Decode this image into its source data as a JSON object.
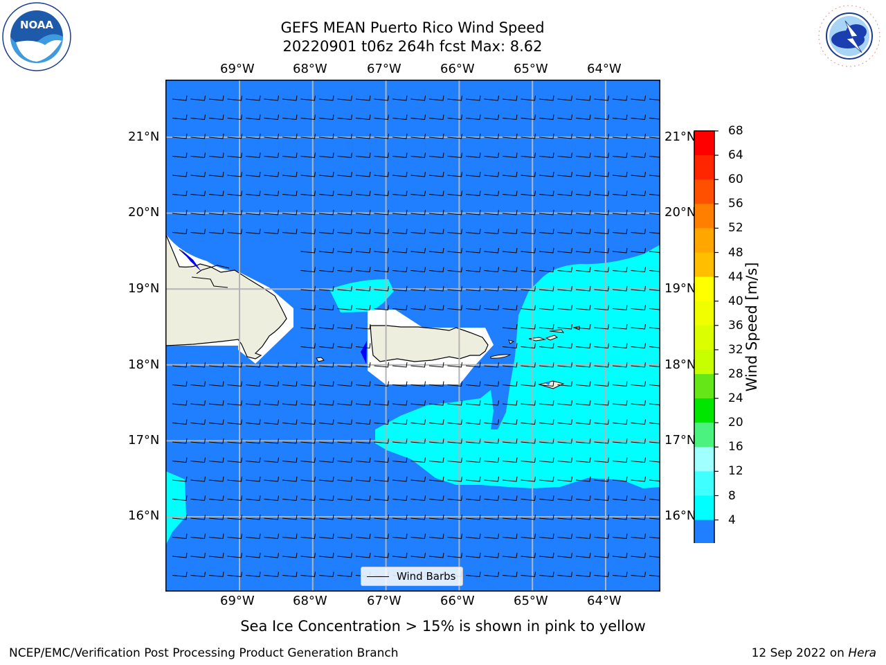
{
  "title": {
    "line1": "GEFS MEAN Puerto Rico Wind Speed",
    "line2": "20220901 t06z 264h fcst   Max: 8.62"
  },
  "logos": {
    "left": {
      "icon": "noaa-logo",
      "text": "NOAA"
    },
    "right": {
      "icon": "nws-logo",
      "text": "NATIONAL WEATHER SERVICE"
    }
  },
  "map": {
    "lon_labels": [
      "69°W",
      "68°W",
      "67°W",
      "66°W",
      "65°W",
      "64°W"
    ],
    "lat_labels": [
      "21°N",
      "20°N",
      "19°N",
      "18°N",
      "17°N",
      "16°N"
    ],
    "lon_values": [
      -69,
      -68,
      -67,
      -66,
      -65,
      -64
    ],
    "lat_values": [
      21,
      20,
      19,
      18,
      17,
      16
    ],
    "colors": {
      "ocean_4_8": "#1f7fff",
      "ocean_8_12": "#00ffff",
      "land": "#eeeede",
      "below_4": "#0000ff",
      "grid": "#b4b4b4"
    },
    "legend_label": "Wind Barbs"
  },
  "colorbar": {
    "label": "Wind Speed [m/s]",
    "ticks": [
      "68",
      "64",
      "60",
      "56",
      "52",
      "48",
      "44",
      "40",
      "36",
      "32",
      "28",
      "24",
      "20",
      "16",
      "12",
      "8",
      "4"
    ],
    "colors": [
      "#ff0000",
      "#ff2600",
      "#ff5000",
      "#ff8000",
      "#ffa600",
      "#ffbf00",
      "#ffff00",
      "#f0ff00",
      "#dcff00",
      "#c8ff00",
      "#64e619",
      "#00e600",
      "#4cf27f",
      "#a0ffff",
      "#40ffff",
      "#00ffff",
      "#1f7fff"
    ],
    "extend_color": "#0000ff"
  },
  "note": "Sea Ice Concentration > 15% is shown in pink to yellow",
  "footer": {
    "left": "NCEP/EMC/Verification Post Processing Product Generation Branch",
    "right_date": "12 Sep 2022 on ",
    "right_machine": "Hera"
  }
}
